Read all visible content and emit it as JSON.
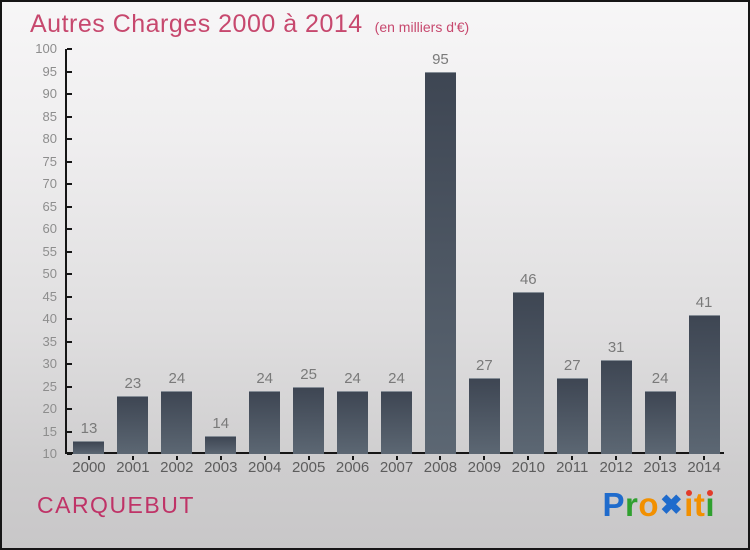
{
  "header": {
    "title": "Autres Charges 2000 à 2014",
    "subtitle": "(en milliers d'€)",
    "accent_color": "#c7486e"
  },
  "chart_data": {
    "type": "bar",
    "title": "Autres Charges 2000 à 2014",
    "unit_note": "(en milliers d'€)",
    "categories": [
      "2000",
      "2001",
      "2002",
      "2003",
      "2004",
      "2005",
      "2006",
      "2007",
      "2008",
      "2009",
      "2010",
      "2011",
      "2012",
      "2013",
      "2014"
    ],
    "values": [
      13,
      23,
      24,
      14,
      24,
      25,
      24,
      24,
      95,
      27,
      46,
      27,
      31,
      24,
      41
    ],
    "ylim": [
      10,
      100
    ],
    "yticks": [
      100,
      95,
      90,
      85,
      80,
      75,
      70,
      65,
      60,
      55,
      50,
      45,
      40,
      35,
      30,
      25,
      20,
      15,
      10
    ],
    "grid": "off",
    "legend": "none",
    "bar_color_top": "#3e4653",
    "bar_color_bottom": "#5c6773",
    "axis_color": "#161616",
    "value_label_color": "#7a7a7a",
    "ytick_label_color": "#8d8d8d",
    "category_label_color": "#5d5d5d"
  },
  "footer": {
    "commune": "CARQUEBUT",
    "commune_color": "#bf3367",
    "logo": {
      "name": "Proxiti",
      "letters": [
        {
          "ch": "P",
          "color": "#1f6bcc"
        },
        {
          "ch": "r",
          "color": "#2fa02f"
        },
        {
          "ch": "o",
          "color": "#f29000"
        },
        {
          "ch": "✖",
          "color": "#1f6bcc",
          "big": true
        },
        {
          "ch": "ı",
          "color": "#f29000",
          "dot": "#e23b2a"
        },
        {
          "ch": "t",
          "color": "#f29000"
        },
        {
          "ch": "ı",
          "color": "#2fa02f",
          "dot": "#e23b2a"
        }
      ]
    }
  }
}
